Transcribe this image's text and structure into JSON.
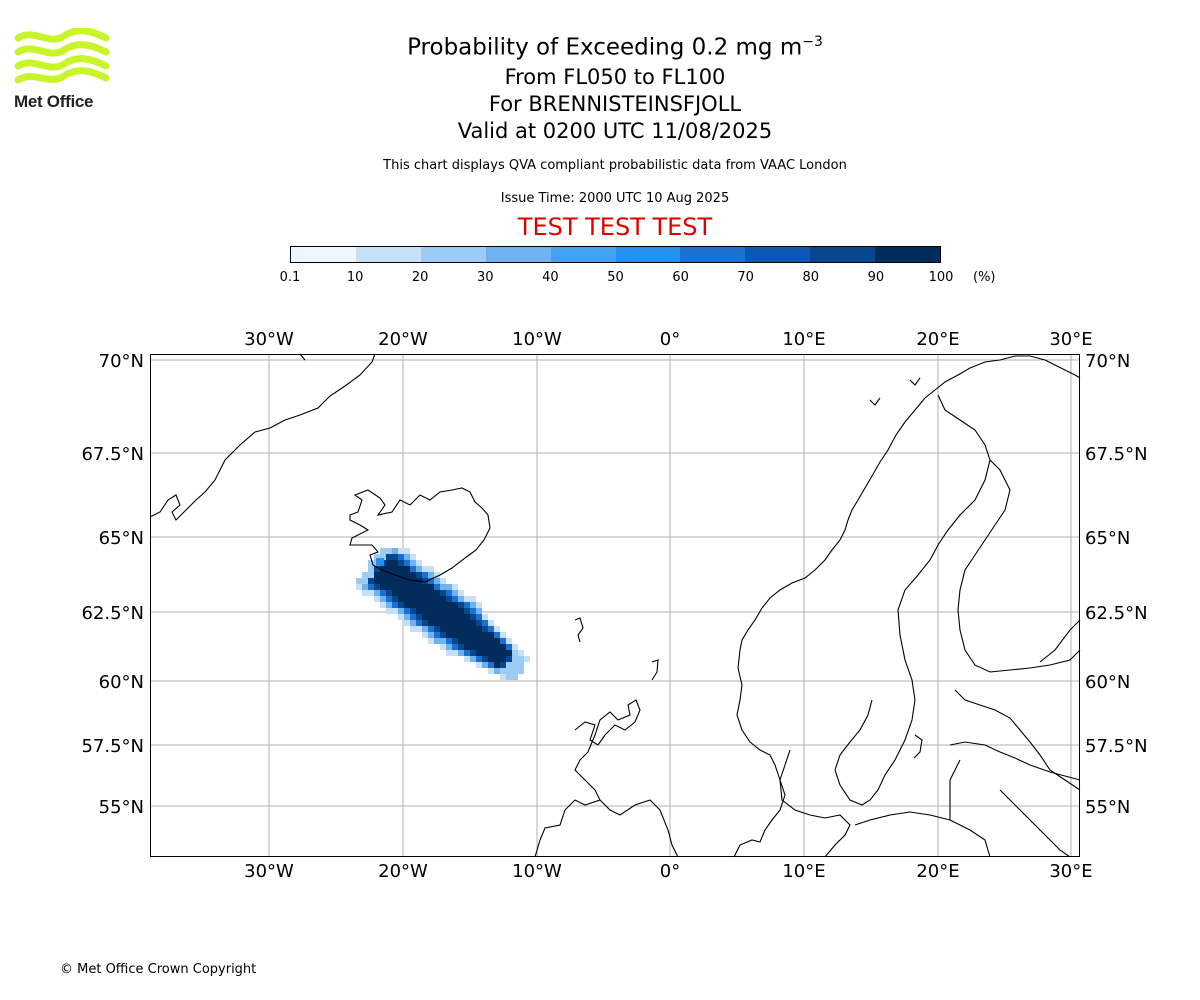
{
  "header": {
    "title_prefix": "Probability of Exceeding 0.2 mg m",
    "title_exponent": "−3",
    "line2": "From FL050 to FL100",
    "line3": "For BRENNISTEINSFJOLL",
    "line4": "Valid at 0200 UTC 11/08/2025",
    "subtitle": "This chart displays QVA compliant probabilistic data from VAAC London",
    "issue_time": "Issue Time: 2000 UTC 10 Aug 2025",
    "test_banner": "TEST TEST TEST"
  },
  "logo": {
    "text": "Met Office",
    "color": "#c8f52a"
  },
  "colorbar": {
    "ticks": [
      "0.1",
      "10",
      "20",
      "30",
      "40",
      "50",
      "60",
      "70",
      "80",
      "90",
      "100"
    ],
    "unit": "(%)",
    "colors": [
      "#eef6ff",
      "#c6e0f8",
      "#9ccbf3",
      "#6eb3ef",
      "#45a1f1",
      "#2790ee",
      "#1a71d2",
      "#0a58b3",
      "#06478f",
      "#022c5c"
    ]
  },
  "map": {
    "lon_labels": [
      "30°W",
      "20°W",
      "10°W",
      "0°",
      "10°E",
      "20°E",
      "30°E"
    ],
    "lat_labels": [
      "70°N",
      "67.5°N",
      "65°N",
      "62.5°N",
      "60°N",
      "57.5°N",
      "55°N"
    ],
    "accent_color": "#e00000"
  },
  "footer": {
    "copyright": "© Met Office Crown Copyright"
  }
}
